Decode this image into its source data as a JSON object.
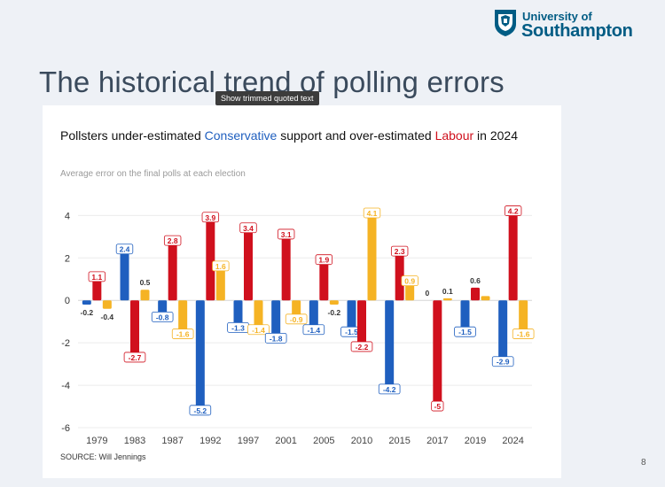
{
  "slide": {
    "title": "The historical trend of polling errors",
    "page_number": "8",
    "tooltip": "Show trimmed quoted text"
  },
  "logo": {
    "line1": "University of",
    "line2": "Southampton"
  },
  "colors": {
    "conservative": "#1f5fbf",
    "labour": "#d0101d",
    "other": "#f5b324",
    "logo": "#005c84"
  },
  "chart_data": {
    "type": "bar",
    "title_parts": {
      "part1": "Pollsters under-estimated ",
      "conservative": "Conservative",
      "part2": " support and over-estimated ",
      "labour": "Labour",
      "part3": " in 2024"
    },
    "subtitle": "Average error on the final polls at each election",
    "source": "SOURCE: Will Jennings",
    "categories": [
      "1979",
      "1983",
      "1987",
      "1992",
      "1997",
      "2001",
      "2005",
      "2010",
      "2015",
      "2017",
      "2019",
      "2024"
    ],
    "series": [
      {
        "key": "conservative",
        "color": "#1f5fbf",
        "values": [
          -0.2,
          2.4,
          -0.8,
          -5.2,
          -1.3,
          -1.8,
          -1.4,
          -1.5,
          -4.2,
          0,
          -1.5,
          -2.9
        ],
        "labels": [
          "-0.2",
          "2.4",
          "-0.8",
          "-5.2",
          "-1.3",
          "-1.8",
          "-1.4",
          "-1.5",
          "-4.2",
          "0",
          "-1.5",
          "-2.9"
        ]
      },
      {
        "key": "labour",
        "color": "#d0101d",
        "values": [
          1.1,
          -2.7,
          2.8,
          3.9,
          3.4,
          3.1,
          1.9,
          -2.2,
          2.3,
          -5,
          0.6,
          4.2
        ],
        "labels": [
          "1.1",
          "-2.7",
          "2.8",
          "3.9",
          "3.4",
          "3.1",
          "1.9",
          "-2.2",
          "2.3",
          "-5",
          "0.6",
          "4.2"
        ]
      },
      {
        "key": "other",
        "color": "#f5b324",
        "values": [
          -0.4,
          0.5,
          -1.6,
          1.6,
          -1.4,
          -0.9,
          -0.2,
          4.1,
          0.9,
          0.1,
          0.2,
          -1.6
        ],
        "labels": [
          "-0.4",
          "0.5",
          "-1.6",
          "1.6",
          "-1.4",
          "-0.9",
          "-0.2",
          "4.1",
          "0.9",
          "0.1",
          "",
          "-1.6"
        ]
      }
    ],
    "yticks": [
      4,
      2,
      0,
      -2,
      -4,
      -6
    ],
    "ylim": [
      -6,
      4.6
    ],
    "grid": true
  }
}
